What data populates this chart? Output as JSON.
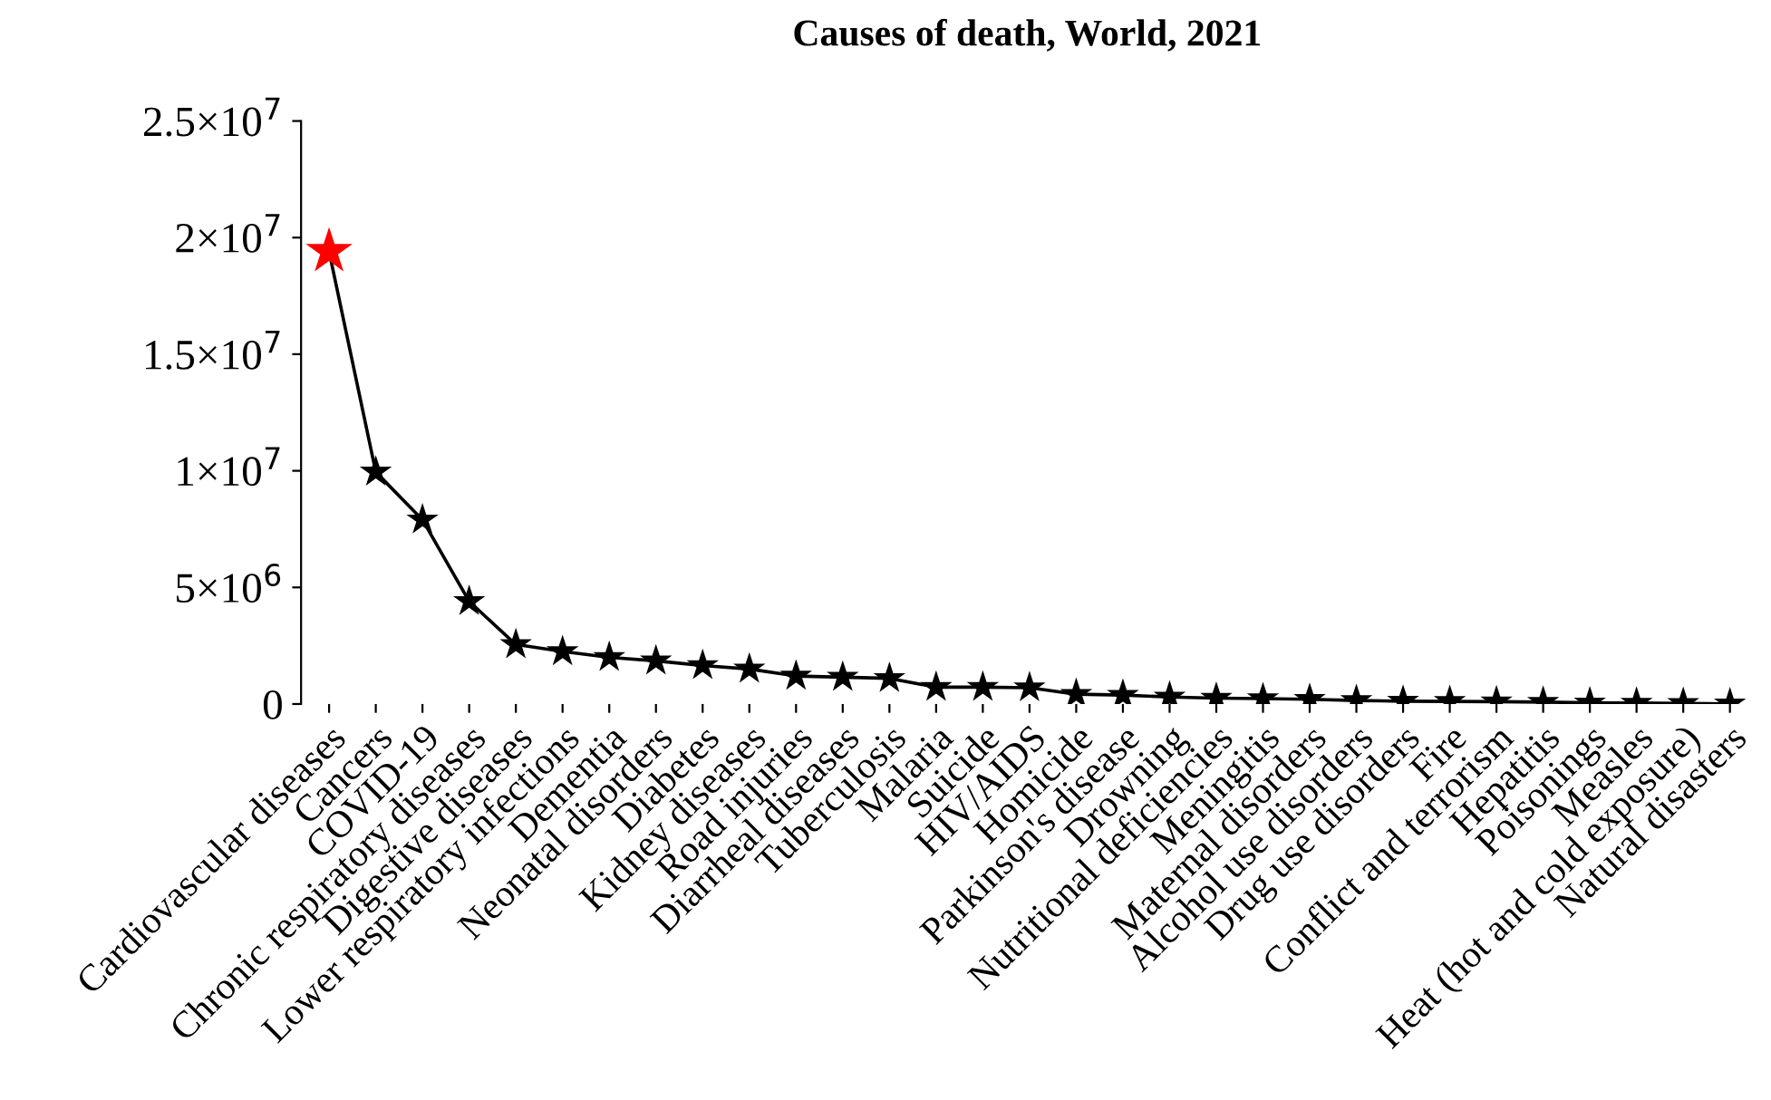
{
  "chart_data": {
    "type": "line",
    "title": "Causes of death, World, 2021",
    "categories": [
      "Cardiovascular diseases",
      "Cancers",
      "COVID-19",
      "Chronic respiratory diseases",
      "Digestive diseases",
      "Lower respiratory infections",
      "Dementia",
      "Neonatal disorders",
      "Diabetes",
      "Kidney diseases",
      "Road injuries",
      "Diarrheal diseases",
      "Tuberculosis",
      "Malaria",
      "Suicide",
      "HIV/AIDS",
      "Homicide",
      "Parkinson's disease",
      "Drowning",
      "Nutritional deficiencies",
      "Meningitis",
      "Maternal disorders",
      "Alcohol use disorders",
      "Drug use disorders",
      "Fire",
      "Conflict and terrorism",
      "Hepatitis",
      "Poisonings",
      "Measles",
      "Heat (hot and cold exposure)",
      "Natural disasters"
    ],
    "series": [
      {
        "color": "#000000",
        "colors": [
          "#ff0000",
          "#000000",
          "#000000",
          "#000000",
          "#000000",
          "#000000",
          "#000000",
          "#000000",
          "#000000",
          "#000000",
          "#000000",
          "#000000",
          "#000000",
          "#000000",
          "#000000",
          "#000000",
          "#000000",
          "#000000",
          "#000000",
          "#000000",
          "#000000",
          "#000000",
          "#000000",
          "#000000",
          "#000000",
          "#000000",
          "#000000",
          "#000000",
          "#000000",
          "#000000",
          "#000000"
        ],
        "values": [
          19400000,
          9950000,
          7900000,
          4400000,
          2550000,
          2250000,
          2000000,
          1850000,
          1650000,
          1500000,
          1200000,
          1150000,
          1100000,
          720000,
          720000,
          700000,
          420000,
          380000,
          300000,
          250000,
          230000,
          200000,
          150000,
          120000,
          110000,
          100000,
          80000,
          50000,
          40000,
          30000,
          10000
        ]
      }
    ],
    "ylim": [
      0,
      25000000
    ],
    "yticks": [
      0,
      {
        "value": 5000000,
        "label": "5×10$^{6}$"
      },
      {
        "value": 10000000,
        "label": "1×10$^{7}$"
      },
      {
        "value": 15000000,
        "label": "1.5×10$^{7}$"
      },
      {
        "value": 20000000,
        "label": "2×10$^{7}$"
      },
      {
        "value": 25000000,
        "label": "2.5×10$^{7}$"
      }
    ],
    "marker": "star",
    "line_style": "solid",
    "grid": false,
    "legend": false
  }
}
